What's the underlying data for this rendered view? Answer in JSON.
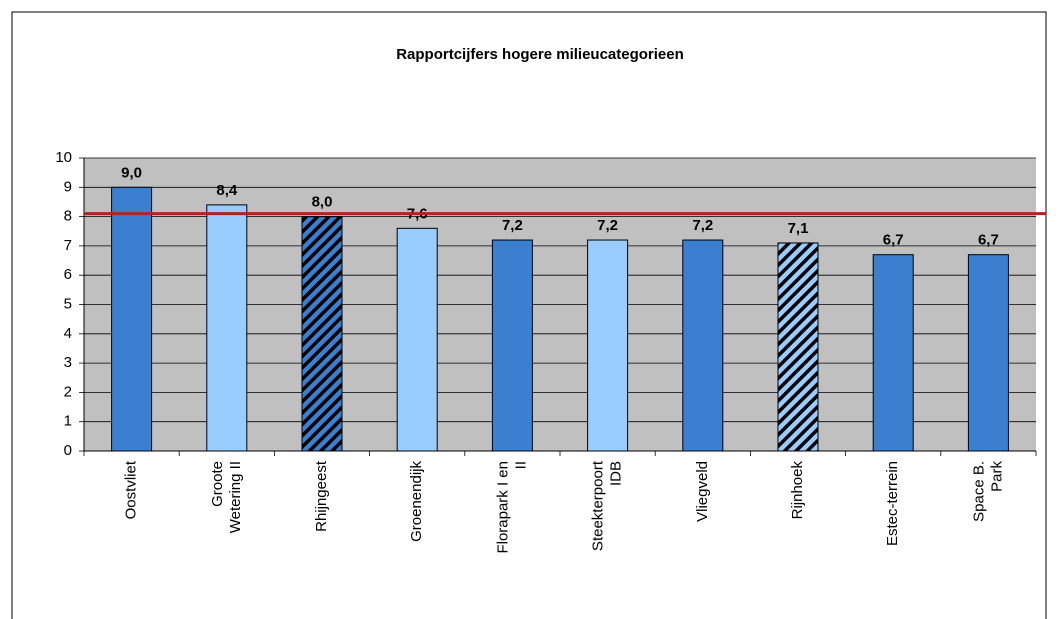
{
  "chart_data": {
    "type": "bar",
    "title": "Rapportcijfers hogere milieucategorieen",
    "categories": [
      "Oostvliet",
      "Groote\nWetering II",
      "Rhijngeest",
      "Groenendijk",
      "Florapark I en\nII",
      "Steekterpoort\nIDB",
      "Vliegveld",
      "Rijnhoek",
      "Estec-terrein",
      "Space B.\nPark"
    ],
    "values": [
      9.0,
      8.4,
      8.0,
      7.6,
      7.2,
      7.2,
      7.2,
      7.1,
      6.7,
      6.7
    ],
    "value_labels": [
      "9,0",
      "8,4",
      "8,0",
      "7,6",
      "7,2",
      "7,2",
      "7,2",
      "7,1",
      "6,7",
      "6,7"
    ],
    "colors": [
      "#3a7fd0",
      "#99ccff",
      "#3a7fd0",
      "#99ccff",
      "#3a7fd0",
      "#99ccff",
      "#3a7fd0",
      "#99ccff",
      "#3a7fd0",
      "#3a7fd0"
    ],
    "hatched": [
      false,
      false,
      true,
      false,
      false,
      false,
      false,
      true,
      false,
      false
    ],
    "reference_line": {
      "value": 8.1,
      "color": "#b22222"
    },
    "ylim": [
      0,
      10
    ],
    "yticks": [
      0,
      1,
      2,
      3,
      4,
      5,
      6,
      7,
      8,
      9,
      10
    ],
    "grid": true
  }
}
